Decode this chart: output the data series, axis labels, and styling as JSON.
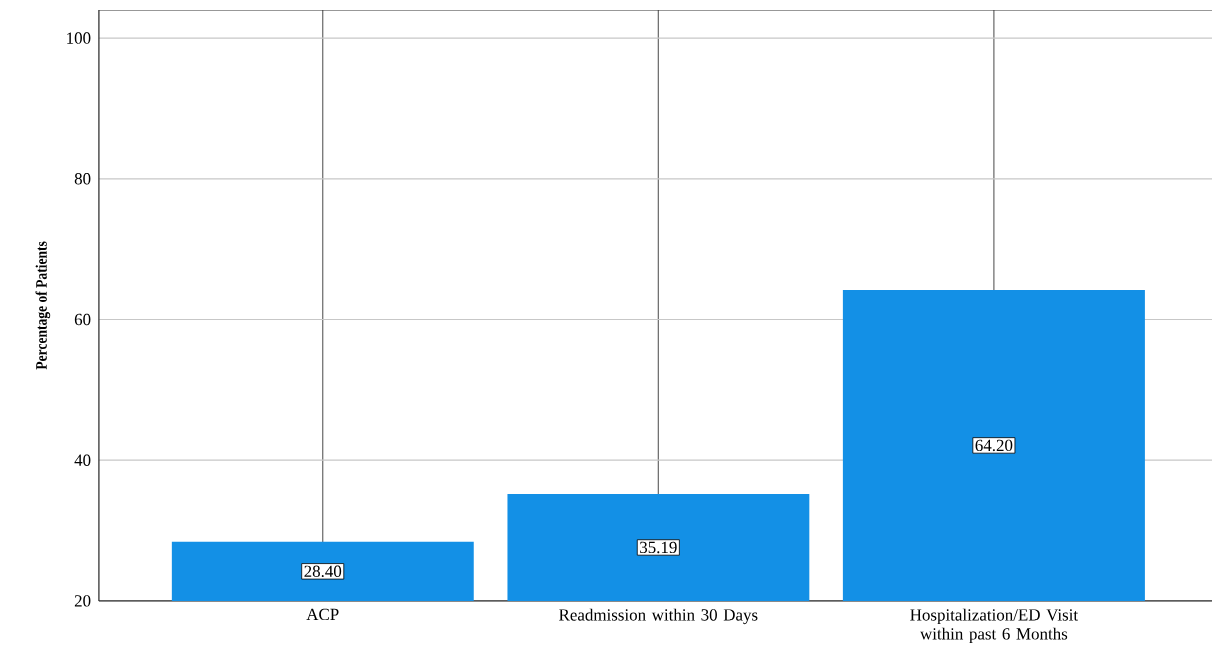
{
  "chart_data": {
    "type": "bar",
    "ylabel": "Percentage of Patients",
    "categories": [
      "ACP",
      "Readmission within 30 Days",
      "Hospitalization/ED Visit within past 6 Months"
    ],
    "values": [
      28.4,
      35.19,
      64.2
    ],
    "color": "#1390e6",
    "value_labels": [
      "28.40",
      "35.19",
      "64.20"
    ],
    "ylim": [
      20,
      104
    ],
    "yticks": [
      20,
      40,
      60,
      80,
      100
    ],
    "grid": true
  }
}
